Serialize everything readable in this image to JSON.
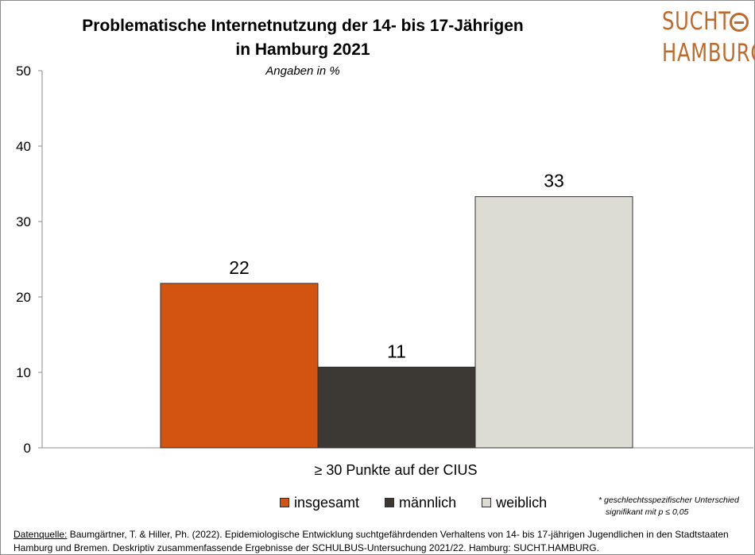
{
  "chart_data": {
    "type": "bar",
    "title_line1": "Problematische Internetnutzung der 14- bis 17-Jährigen",
    "title_line2": "in Hamburg 2021",
    "subtitle": "Angaben in %",
    "categories": [
      "≥ 30 Punkte auf der CIUS"
    ],
    "series": [
      {
        "name": "insgesamt",
        "values": [
          22
        ],
        "value_exact": 21.8,
        "color": "#d35411"
      },
      {
        "name": "männlich",
        "values": [
          11
        ],
        "value_exact": 10.7,
        "color": "#3c3935"
      },
      {
        "name": "weiblich",
        "values": [
          33
        ],
        "value_exact": 33.3,
        "color": "#dcdcd4"
      }
    ],
    "ylim": [
      0,
      50
    ],
    "yticks": [
      0,
      10,
      20,
      30,
      40,
      50
    ],
    "grid": false,
    "legend_position": "bottom"
  },
  "logo": {
    "line1": "SUCHT",
    "line2": "HAMBURG",
    "color": "#c0692a"
  },
  "note": {
    "line1": "* geschlechtsspezifischer Unterschied",
    "line2": "signifikant mit p ≤ 0,05"
  },
  "source": {
    "label": "Datenquelle:",
    "text": " Baumgärtner, T. & Hiller, Ph. (2022). Epidemiologische Entwicklung suchtgefährdenden Verhaltens von 14- bis 17-jährigen Jugendlichen in den Stadtstaaten Hamburg und Bremen. Deskriptiv zusammenfassende Ergebnisse der SCHULBUS-Untersuchung 2021/22. Hamburg: SUCHT.HAMBURG."
  }
}
